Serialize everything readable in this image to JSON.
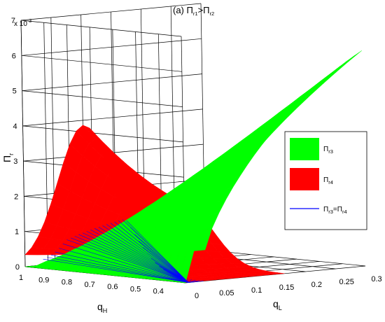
{
  "chart_data": {
    "type": "surface3d",
    "title": "(a) Π",
    "title_parts": {
      "sym1": "Π",
      "sub1": "r1",
      "op": ">",
      "sym2": "Π",
      "sub2": "r2",
      "prefix": "(a) "
    },
    "exponent_label": {
      "base": "x 10",
      "exp": "-3"
    },
    "zlabel": {
      "sym": "Π",
      "sub": "r"
    },
    "xlabel": {
      "sym": "q",
      "sub": "H"
    },
    "ylabel": {
      "sym": "q",
      "sub": "L"
    },
    "zlim": [
      0,
      7
    ],
    "xlim": [
      0.3,
      1
    ],
    "ylim": [
      0,
      0.3
    ],
    "z_ticks": [
      "0",
      "1",
      "2",
      "3",
      "4",
      "5",
      "6",
      "7"
    ],
    "x_ticks": [
      "1",
      "0.9",
      "0.8",
      "0.7",
      "0.6",
      "0.5",
      "0.4"
    ],
    "y_ticks": [
      "0",
      "0.05",
      "0.1",
      "0.15",
      "0.2",
      "0.25",
      "0.3"
    ],
    "grid": true,
    "legend_position": "right",
    "series": [
      {
        "name": "Πr3",
        "sym": "Π",
        "sub": "r3",
        "color": "#00ff00",
        "kind": "surface",
        "peak_z": 7.2
      },
      {
        "name": "Πr4",
        "sym": "Π",
        "sub": "r4",
        "color": "#ff0000",
        "kind": "surface",
        "peak_z": 4.2
      },
      {
        "name": "Πr3=Πr4",
        "sym": "Π",
        "sub": "r3",
        "eq": "=",
        "sym2": "Π",
        "sub2": "r4",
        "color": "#0000ff",
        "kind": "line"
      }
    ]
  }
}
